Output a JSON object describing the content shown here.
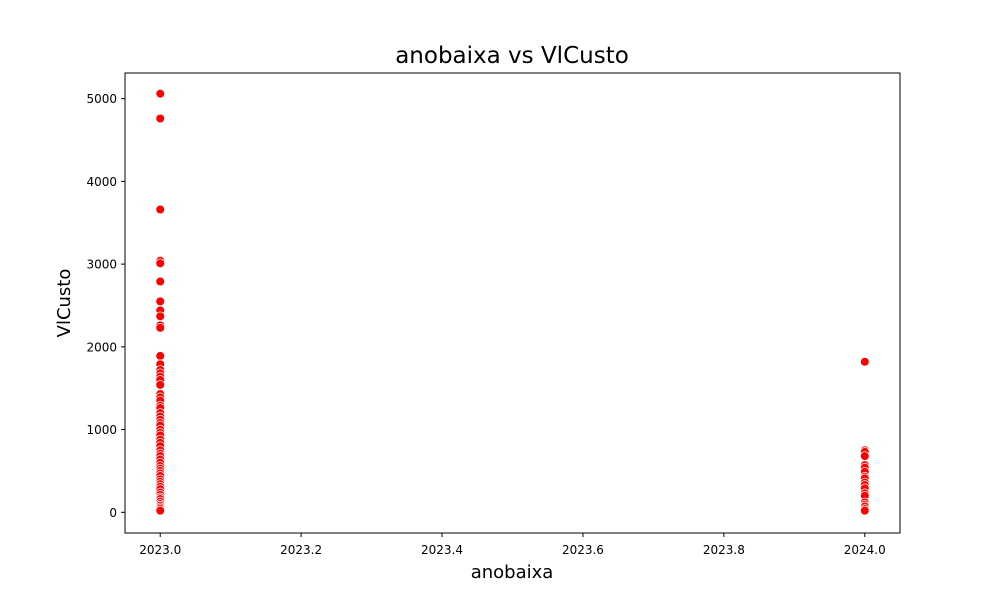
{
  "chart_data": {
    "type": "scatter",
    "title": "anobaixa vs VlCusto",
    "xlabel": "anobaixa",
    "ylabel": "VlCusto",
    "xlim": [
      2022.95,
      2024.05
    ],
    "ylim": [
      -250,
      5310
    ],
    "xticks": [
      2023.0,
      2023.2,
      2023.4,
      2023.6,
      2023.8,
      2024.0
    ],
    "xtick_labels": [
      "2023.0",
      "2023.2",
      "2023.4",
      "2023.6",
      "2023.8",
      "2024.0"
    ],
    "yticks": [
      0,
      1000,
      2000,
      3000,
      4000,
      5000
    ],
    "ytick_labels": [
      "0",
      "1000",
      "2000",
      "3000",
      "4000",
      "5000"
    ],
    "grid": false,
    "legend": "none",
    "marker_color": "#ff0000",
    "marker_edge_color": "#ffffff",
    "series": [
      {
        "x": [
          2023,
          2023,
          2023,
          2023,
          2023,
          2023,
          2023,
          2023,
          2023,
          2023,
          2023,
          2023,
          2023,
          2023,
          2023,
          2023,
          2023,
          2023,
          2023,
          2023,
          2023,
          2023,
          2023,
          2023,
          2023,
          2023,
          2023,
          2023,
          2023,
          2023,
          2023,
          2023,
          2023,
          2023,
          2023,
          2023,
          2023,
          2023,
          2023,
          2023,
          2023,
          2023,
          2023,
          2023,
          2023,
          2023,
          2023,
          2023,
          2023,
          2023,
          2023,
          2023,
          2023,
          2023,
          2023,
          2023,
          2023,
          2023,
          2023,
          2024,
          2024,
          2024,
          2024,
          2024,
          2024,
          2024,
          2024,
          2024,
          2024,
          2024,
          2024,
          2024,
          2024,
          2024,
          2024,
          2024,
          2024,
          2024
        ],
        "y": [
          5060,
          4760,
          3660,
          3040,
          3010,
          2790,
          2550,
          2440,
          2370,
          2260,
          2230,
          1890,
          1790,
          1720,
          1680,
          1640,
          1600,
          1540,
          1430,
          1390,
          1350,
          1290,
          1260,
          1200,
          1160,
          1120,
          1080,
          1050,
          1000,
          960,
          930,
          880,
          840,
          800,
          750,
          710,
          680,
          640,
          600,
          560,
          530,
          500,
          470,
          440,
          400,
          370,
          340,
          310,
          280,
          240,
          210,
          180,
          160,
          130,
          100,
          80,
          60,
          40,
          20,
          1820,
          750,
          730,
          680,
          570,
          540,
          490,
          430,
          410,
          360,
          330,
          290,
          230,
          200,
          120,
          90,
          70,
          40,
          20
        ]
      }
    ]
  }
}
